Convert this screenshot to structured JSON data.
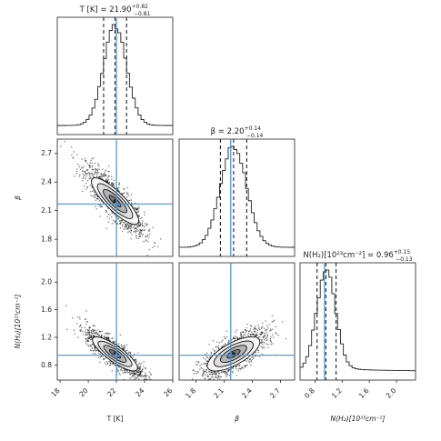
{
  "chart_data": {
    "type": "corner",
    "parameters": [
      {
        "name": "T [K]",
        "axis_label": "T [K]",
        "title": "T [K] = 21.90",
        "title_sup": "+0.82",
        "title_sub": "−0.81",
        "median": 21.9,
        "q16": 21.09,
        "q84": 22.72,
        "truth": 22.0,
        "range": [
          17.8,
          26.0
        ],
        "ticks": [
          18,
          20,
          22,
          24,
          26
        ],
        "tick_labels": [
          "18",
          "20",
          "22",
          "24",
          "26"
        ],
        "std": 0.82
      },
      {
        "name": "β",
        "axis_label": "β",
        "title": "β = 2.20",
        "title_sup": "+0.14",
        "title_sub": "−0.14",
        "median": 2.2,
        "q16": 2.06,
        "q84": 2.34,
        "truth": 2.17,
        "range": [
          1.62,
          2.85
        ],
        "ticks": [
          1.8,
          2.1,
          2.4,
          2.7
        ],
        "tick_labels": [
          "1.8",
          "2.1",
          "2.4",
          "2.7"
        ],
        "std": 0.14
      },
      {
        "name": "N(H2)[10^23 cm^-2]",
        "axis_label": "N(H₂)[10²³cm⁻²]",
        "title": "N(H₂)[10²³cm⁻²] = 0.96",
        "title_sup": "+0.15",
        "title_sub": "−0.13",
        "median": 0.96,
        "q16": 0.83,
        "q84": 1.11,
        "truth": 0.94,
        "range": [
          0.58,
          2.28
        ],
        "ticks": [
          0.8,
          1.2,
          1.6,
          2.0
        ],
        "tick_labels": [
          "0.8",
          "1.2",
          "1.6",
          "2.0"
        ],
        "std": 0.14
      }
    ],
    "correlations": {
      "0-1": -0.85,
      "0-2": -0.85,
      "1-2": 0.75
    },
    "truth_line_color": "#4d8fc6",
    "quantile_line_style": "dashed",
    "histogram_style": "step",
    "grid": false
  }
}
